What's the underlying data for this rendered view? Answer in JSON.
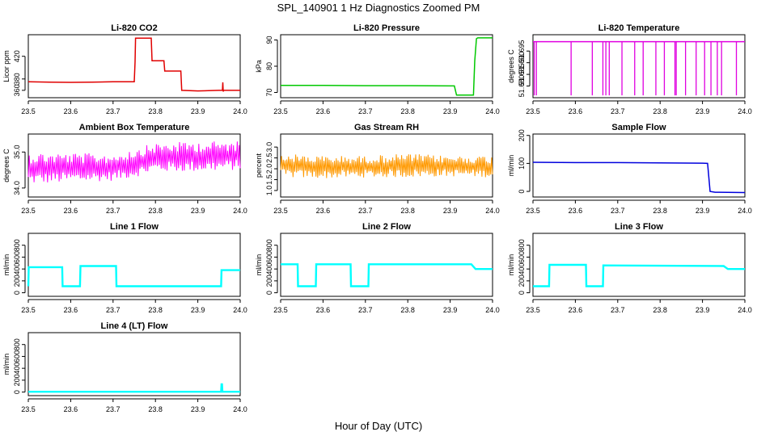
{
  "figure": {
    "title": "SPL_140901  1 Hz Diagnostics Zoomed PM",
    "xlabel": "Hour of Day (UTC)"
  },
  "chart_data": [
    {
      "type": "line",
      "title": "Li-820 CO2",
      "xlabel": "",
      "ylabel": "Licor ppm",
      "color": "#e00000",
      "xlim": [
        23.5,
        24.0
      ],
      "ylim": [
        347,
        458
      ],
      "xticks": [
        "23.5",
        "23.6",
        "23.7",
        "23.8",
        "23.9",
        "24.0"
      ],
      "yticks": [
        {
          "v": 360,
          "l": "360"
        },
        {
          "v": 380,
          "l": "380"
        },
        {
          "v": 420,
          "l": "420"
        }
      ],
      "style": "line",
      "series": [
        {
          "x": [
            23.5,
            23.55,
            23.6,
            23.65,
            23.7,
            23.75,
            23.752,
            23.753,
            23.76,
            23.79,
            23.792,
            23.8,
            23.81,
            23.82,
            23.822,
            23.83,
            23.85,
            23.86,
            23.862,
            23.9,
            23.95,
            23.958,
            23.959,
            23.96,
            23.961,
            23.963,
            24.0
          ],
          "y": [
            375,
            374.5,
            374,
            374.5,
            375,
            375,
            410,
            452,
            452,
            452,
            412,
            412,
            412,
            412,
            394,
            394,
            394,
            394,
            360,
            359,
            360,
            360,
            374,
            358,
            360,
            360,
            360
          ]
        }
      ]
    },
    {
      "type": "line",
      "title": "Li-820 Pressure",
      "xlabel": "",
      "ylabel": "kPa",
      "color": "#00c800",
      "xlim": [
        23.5,
        24.0
      ],
      "ylim": [
        68,
        92
      ],
      "xticks": [
        "23.5",
        "23.6",
        "23.7",
        "23.8",
        "23.9",
        "24.0"
      ],
      "yticks": [
        {
          "v": 70,
          "l": "70"
        },
        {
          "v": 80,
          "l": "80"
        },
        {
          "v": 90,
          "l": "90"
        }
      ],
      "style": "line",
      "series": [
        {
          "x": [
            23.5,
            23.6,
            23.7,
            23.8,
            23.9,
            23.91,
            23.915,
            23.955,
            23.958,
            23.962,
            23.965,
            24.0
          ],
          "y": [
            72.7,
            72.7,
            72.6,
            72.6,
            72.5,
            72.5,
            69,
            69,
            82,
            90.5,
            90.8,
            90.8
          ]
        }
      ]
    },
    {
      "type": "line",
      "title": "Li-820 Temperature",
      "xlabel": "",
      "ylabel": "degrees C",
      "color": "#e000e0",
      "xlim": [
        23.5,
        24.0
      ],
      "ylim": [
        51.675,
        51.702
      ],
      "xticks": [
        "23.5",
        "23.6",
        "23.7",
        "23.8",
        "23.9",
        "24.0"
      ],
      "yticks": [
        {
          "v": 51.68,
          "l": "51.680"
        },
        {
          "v": 51.685,
          "l": "51.685"
        },
        {
          "v": 51.69,
          "l": "51.690"
        },
        {
          "v": 51.695,
          "l": "51.695"
        }
      ],
      "style": "spikes",
      "base": 51.699,
      "low": 51.676,
      "spikes": [
        23.503,
        23.508,
        23.59,
        23.64,
        23.665,
        23.672,
        23.68,
        23.71,
        23.74,
        23.76,
        23.79,
        23.81,
        23.835,
        23.838,
        23.86,
        23.885,
        23.905,
        23.92,
        23.935,
        23.945,
        23.98
      ]
    },
    {
      "type": "line",
      "title": "Ambient Box Temperature",
      "xlabel": "",
      "ylabel": "degrees C",
      "color": "#ff00ff",
      "xlim": [
        23.5,
        24.0
      ],
      "ylim": [
        33.75,
        35.5
      ],
      "xticks": [
        "23.5",
        "23.6",
        "23.7",
        "23.8",
        "23.9",
        "24.0"
      ],
      "yticks": [
        {
          "v": 34.0,
          "l": "34.0"
        },
        {
          "v": 35.0,
          "l": "35.0"
        }
      ],
      "style": "noise",
      "n": 220,
      "envelope": {
        "x": [
          23.5,
          23.7,
          23.75,
          23.8,
          23.9,
          24.0
        ],
        "lo": [
          34.1,
          34.2,
          34.3,
          34.45,
          34.45,
          34.5
        ],
        "hi": [
          35.0,
          34.95,
          35.1,
          35.25,
          35.3,
          35.3
        ]
      }
    },
    {
      "type": "line",
      "title": "Gas Stream RH",
      "xlabel": "",
      "ylabel": "percent",
      "color": "#ff9900",
      "xlim": [
        23.5,
        24.0
      ],
      "ylim": [
        0.7,
        3.6
      ],
      "xticks": [
        "23.5",
        "23.6",
        "23.7",
        "23.8",
        "23.9",
        "24.0"
      ],
      "yticks": [
        {
          "v": 1.0,
          "l": "1.0"
        },
        {
          "v": 1.5,
          "l": "1.5"
        },
        {
          "v": 2.0,
          "l": "2.0"
        },
        {
          "v": 2.5,
          "l": "2.5"
        },
        {
          "v": 3.0,
          "l": "3.0"
        }
      ],
      "style": "noise",
      "n": 240,
      "envelope": {
        "x": [
          23.5,
          23.6,
          23.7,
          23.8,
          23.9,
          24.0
        ],
        "lo": [
          1.6,
          1.55,
          1.6,
          1.6,
          1.65,
          1.6
        ],
        "hi": [
          2.7,
          2.6,
          2.6,
          2.7,
          2.6,
          2.6
        ]
      }
    },
    {
      "type": "line",
      "title": "Sample Flow",
      "xlabel": "",
      "ylabel": "ml/min",
      "color": "#0000dd",
      "xlim": [
        23.5,
        24.0
      ],
      "ylim": [
        -20,
        205
      ],
      "xticks": [
        "23.5",
        "23.6",
        "23.7",
        "23.8",
        "23.9",
        "24.0"
      ],
      "yticks": [
        {
          "v": 0,
          "l": "0"
        },
        {
          "v": 100,
          "l": "100"
        },
        {
          "v": 200,
          "l": "200"
        }
      ],
      "style": "line",
      "series": [
        {
          "x": [
            23.5,
            23.6,
            23.7,
            23.8,
            23.9,
            23.912,
            23.918,
            23.93,
            24.0
          ],
          "y": [
            104,
            103,
            103,
            102,
            101,
            100,
            0,
            -3,
            -4
          ]
        }
      ]
    },
    {
      "type": "line",
      "title": "Line 1 Flow",
      "xlabel": "",
      "ylabel": "ml/min",
      "color": "#00ffff",
      "xlim": [
        23.5,
        24.0
      ],
      "ylim": [
        -60,
        1000
      ],
      "xticks": [
        "23.5",
        "23.6",
        "23.7",
        "23.8",
        "23.9",
        "24.0"
      ],
      "yticks": [
        {
          "v": 0,
          "l": "0"
        },
        {
          "v": 200,
          "l": "200"
        },
        {
          "v": 400,
          "l": "400"
        },
        {
          "v": 600,
          "l": "600"
        },
        {
          "v": 800,
          "l": "800"
        }
      ],
      "style": "line",
      "width": 2.4,
      "series": [
        {
          "x": [
            23.5,
            23.501,
            23.58,
            23.581,
            23.622,
            23.623,
            23.707,
            23.708,
            23.955,
            23.956,
            24.0
          ],
          "y": [
            110,
            430,
            430,
            110,
            110,
            450,
            450,
            110,
            110,
            380,
            380
          ]
        }
      ]
    },
    {
      "type": "line",
      "title": "Line 2 Flow",
      "xlabel": "",
      "ylabel": "ml/min",
      "color": "#00ffff",
      "xlim": [
        23.5,
        24.0
      ],
      "ylim": [
        -60,
        1000
      ],
      "xticks": [
        "23.5",
        "23.6",
        "23.7",
        "23.8",
        "23.9",
        "24.0"
      ],
      "yticks": [
        {
          "v": 0,
          "l": "0"
        },
        {
          "v": 200,
          "l": "200"
        },
        {
          "v": 400,
          "l": "400"
        },
        {
          "v": 600,
          "l": "600"
        },
        {
          "v": 800,
          "l": "800"
        }
      ],
      "style": "line",
      "width": 2.4,
      "series": [
        {
          "x": [
            23.5,
            23.54,
            23.541,
            23.583,
            23.584,
            23.665,
            23.666,
            23.707,
            23.708,
            23.95,
            23.96,
            24.0
          ],
          "y": [
            480,
            480,
            110,
            110,
            480,
            480,
            110,
            110,
            480,
            480,
            400,
            400
          ]
        }
      ]
    },
    {
      "type": "line",
      "title": "Line 3 Flow",
      "xlabel": "",
      "ylabel": "ml/min",
      "color": "#00ffff",
      "xlim": [
        23.5,
        24.0
      ],
      "ylim": [
        -60,
        1000
      ],
      "xticks": [
        "23.5",
        "23.6",
        "23.7",
        "23.8",
        "23.9",
        "24.0"
      ],
      "yticks": [
        {
          "v": 0,
          "l": "0"
        },
        {
          "v": 200,
          "l": "200"
        },
        {
          "v": 400,
          "l": "400"
        },
        {
          "v": 600,
          "l": "600"
        },
        {
          "v": 800,
          "l": "800"
        }
      ],
      "style": "line",
      "width": 2.4,
      "series": [
        {
          "x": [
            23.5,
            23.501,
            23.538,
            23.539,
            23.625,
            23.626,
            23.665,
            23.666,
            23.95,
            23.96,
            24.0
          ],
          "y": [
            110,
            110,
            110,
            470,
            470,
            110,
            110,
            460,
            450,
            400,
            400
          ]
        }
      ]
    },
    {
      "type": "line",
      "title": "Line 4 (LT) Flow",
      "xlabel": "",
      "ylabel": "ml/min",
      "color": "#00ffff",
      "xlim": [
        23.5,
        24.0
      ],
      "ylim": [
        -60,
        1000
      ],
      "xticks": [
        "23.5",
        "23.6",
        "23.7",
        "23.8",
        "23.9",
        "24.0"
      ],
      "yticks": [
        {
          "v": 0,
          "l": "0"
        },
        {
          "v": 200,
          "l": "200"
        },
        {
          "v": 400,
          "l": "400"
        },
        {
          "v": 600,
          "l": "600"
        },
        {
          "v": 800,
          "l": "800"
        }
      ],
      "style": "line",
      "width": 2.4,
      "series": [
        {
          "x": [
            23.5,
            23.955,
            23.956,
            23.957,
            23.958,
            24.0
          ],
          "y": [
            5,
            5,
            130,
            130,
            5,
            5
          ]
        }
      ]
    }
  ]
}
